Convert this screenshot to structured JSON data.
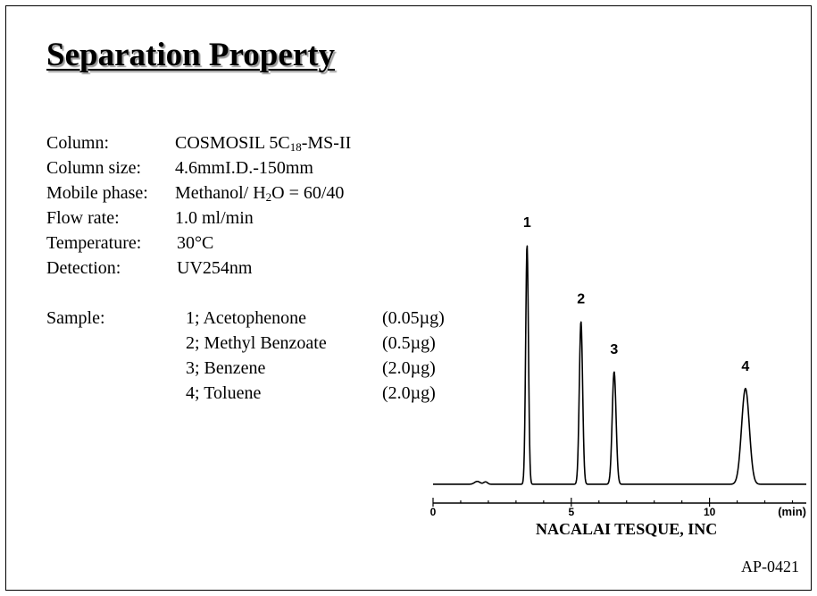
{
  "title": "Separation Property",
  "conditions": {
    "column": {
      "label": "Column:",
      "value_prefix": "COSMOSIL 5C",
      "value_sub": "18",
      "value_suffix": "-MS-II"
    },
    "column_size": {
      "label": "Column size:",
      "value": "4.6mmI.D.-150mm"
    },
    "mobile_phase": {
      "label": "Mobile phase:",
      "value_prefix": "Methanol/ H",
      "value_sub": "2",
      "value_suffix": "O = 60/40"
    },
    "flow_rate": {
      "label": "Flow rate:",
      "value": "1.0 ml/min"
    },
    "temperature": {
      "label": "Temperature:",
      "value": "30°C"
    },
    "detection": {
      "label": "Detection:",
      "value": "UV254nm"
    }
  },
  "sample": {
    "label": "Sample:",
    "items": [
      {
        "name": "1; Acetophenone",
        "amount": "(0.05µg)"
      },
      {
        "name": "2; Methyl Benzoate",
        "amount": "(0.5µg)"
      },
      {
        "name": "3; Benzene",
        "amount": "(2.0µg)"
      },
      {
        "name": "4; Toluene",
        "amount": "(2.0µg)"
      }
    ]
  },
  "chart_data": {
    "type": "line",
    "title": "",
    "xlabel": "(min)",
    "ylabel": "",
    "xlim": [
      0,
      13.5
    ],
    "ylim": [
      0,
      1
    ],
    "x_ticks": [
      0,
      5,
      10
    ],
    "x_tick_labels": [
      "0",
      "5",
      "10"
    ],
    "grid": false,
    "baseline": 0.03,
    "peaks": [
      {
        "label": "1",
        "x": 3.4,
        "height": 1.0,
        "width": 0.05
      },
      {
        "label": "2",
        "x": 5.35,
        "height": 0.68,
        "width": 0.06
      },
      {
        "label": "3",
        "x": 6.55,
        "height": 0.47,
        "width": 0.07
      },
      {
        "label": "4",
        "x": 11.3,
        "height": 0.4,
        "width": 0.14
      }
    ]
  },
  "footer": {
    "company": "NACALAI TESQUE, INC",
    "code": "AP-0421"
  }
}
